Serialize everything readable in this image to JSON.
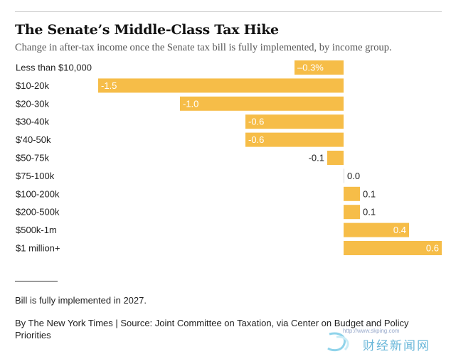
{
  "header": {
    "title": "The Senate’s Middle-Class Tax Hike",
    "subtitle": "Change in after-tax income once the Senate tax bill is fully implemented, by income group."
  },
  "footer": {
    "note": "Bill is fully implemented in 2027.",
    "source": "By The New York Times | Source: Joint Committee on Taxation, via Center on Budget and Policy Priorities"
  },
  "watermark": {
    "url": "http://www.skping.com",
    "text": "财经新闻网"
  },
  "colors": {
    "bar": "#f6bd48",
    "label_inside": "#ffffff",
    "label_outside": "#222222"
  },
  "chart_data": {
    "type": "bar",
    "orientation": "horizontal",
    "categories": [
      "Less than $10,000",
      "$10-20k",
      "$20-30k",
      "$30-40k",
      "$'40-50k",
      "$50-75k",
      "$75-100k",
      "$100-200k",
      "$200-500k",
      "$500k-1m",
      "$1 million+"
    ],
    "values": [
      -0.3,
      -1.5,
      -1.0,
      -0.6,
      -0.6,
      -0.1,
      0.0,
      0.1,
      0.1,
      0.4,
      0.6
    ],
    "labels": [
      "–0.3%",
      "-1.5",
      "-1.0",
      "-0.6",
      "-0.6",
      "-0.1",
      "0.0",
      "0.1",
      "0.1",
      "0.4",
      "0.6"
    ],
    "xlim": [
      -1.5,
      0.6
    ],
    "grid": false,
    "legend": "none"
  }
}
